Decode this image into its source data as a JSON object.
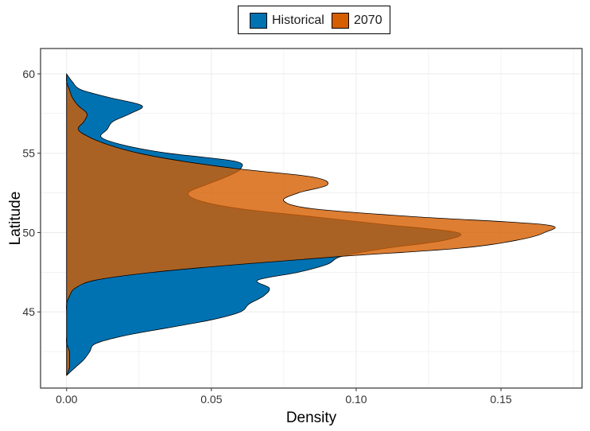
{
  "chart_data": {
    "type": "area",
    "orientation": "horizontal-density",
    "xlabel": "Density",
    "ylabel": "Latitude",
    "xlim": [
      -0.009,
      0.178
    ],
    "ylim": [
      40.2,
      61.6
    ],
    "x_ticks": [
      0.0,
      0.05,
      0.1,
      0.15
    ],
    "x_tick_labels": [
      "0.00",
      "0.05",
      "0.10",
      "0.15"
    ],
    "y_ticks": [
      45,
      50,
      55,
      60
    ],
    "y_tick_labels": [
      "45",
      "50",
      "55",
      "60"
    ],
    "grid": true,
    "legend_position": "top",
    "series": [
      {
        "name": "Historical",
        "color": "#0072B2",
        "points": [
          [
            41.0,
            0.0
          ],
          [
            41.5,
            0.003
          ],
          [
            42.0,
            0.006
          ],
          [
            42.5,
            0.008
          ],
          [
            43.0,
            0.01
          ],
          [
            43.5,
            0.02
          ],
          [
            44.0,
            0.035
          ],
          [
            44.5,
            0.05
          ],
          [
            45.0,
            0.06
          ],
          [
            45.5,
            0.063
          ],
          [
            46.0,
            0.068
          ],
          [
            46.5,
            0.07
          ],
          [
            47.0,
            0.066
          ],
          [
            47.5,
            0.08
          ],
          [
            48.0,
            0.09
          ],
          [
            48.5,
            0.095
          ],
          [
            49.0,
            0.11
          ],
          [
            49.5,
            0.13
          ],
          [
            50.0,
            0.135
          ],
          [
            50.5,
            0.11
          ],
          [
            51.0,
            0.085
          ],
          [
            51.5,
            0.06
          ],
          [
            52.0,
            0.046
          ],
          [
            52.5,
            0.042
          ],
          [
            53.0,
            0.048
          ],
          [
            53.5,
            0.055
          ],
          [
            54.0,
            0.06
          ],
          [
            54.5,
            0.058
          ],
          [
            55.0,
            0.035
          ],
          [
            55.5,
            0.02
          ],
          [
            56.0,
            0.012
          ],
          [
            56.5,
            0.014
          ],
          [
            57.0,
            0.016
          ],
          [
            57.5,
            0.022
          ],
          [
            58.0,
            0.026
          ],
          [
            58.5,
            0.015
          ],
          [
            59.0,
            0.005
          ],
          [
            59.5,
            0.002
          ],
          [
            60.0,
            0.0
          ]
        ]
      },
      {
        "name": "2070",
        "color": "#D55E00",
        "points": [
          [
            41.0,
            0.0
          ],
          [
            41.5,
            0.001
          ],
          [
            42.0,
            0.001
          ],
          [
            42.5,
            0.001
          ],
          [
            43.0,
            0.0
          ],
          [
            43.5,
            0.0
          ],
          [
            44.0,
            0.0
          ],
          [
            44.5,
            0.0
          ],
          [
            45.0,
            0.0
          ],
          [
            45.5,
            0.0
          ],
          [
            46.0,
            0.001
          ],
          [
            46.5,
            0.003
          ],
          [
            47.0,
            0.01
          ],
          [
            47.5,
            0.03
          ],
          [
            48.0,
            0.06
          ],
          [
            48.5,
            0.095
          ],
          [
            49.0,
            0.135
          ],
          [
            49.5,
            0.155
          ],
          [
            50.0,
            0.165
          ],
          [
            50.5,
            0.165
          ],
          [
            51.0,
            0.12
          ],
          [
            51.5,
            0.085
          ],
          [
            52.0,
            0.075
          ],
          [
            52.5,
            0.08
          ],
          [
            53.0,
            0.09
          ],
          [
            53.5,
            0.085
          ],
          [
            54.0,
            0.06
          ],
          [
            54.5,
            0.04
          ],
          [
            55.0,
            0.025
          ],
          [
            55.5,
            0.015
          ],
          [
            56.0,
            0.008
          ],
          [
            56.5,
            0.004
          ],
          [
            57.0,
            0.006
          ],
          [
            57.5,
            0.007
          ],
          [
            58.0,
            0.004
          ],
          [
            58.5,
            0.002
          ],
          [
            59.0,
            0.001
          ],
          [
            59.5,
            0.0
          ],
          [
            60.0,
            0.0
          ]
        ]
      }
    ]
  },
  "legend": {
    "items": [
      {
        "label": "Historical",
        "color": "#0072B2"
      },
      {
        "label": "2070",
        "color": "#D55E00"
      }
    ]
  }
}
